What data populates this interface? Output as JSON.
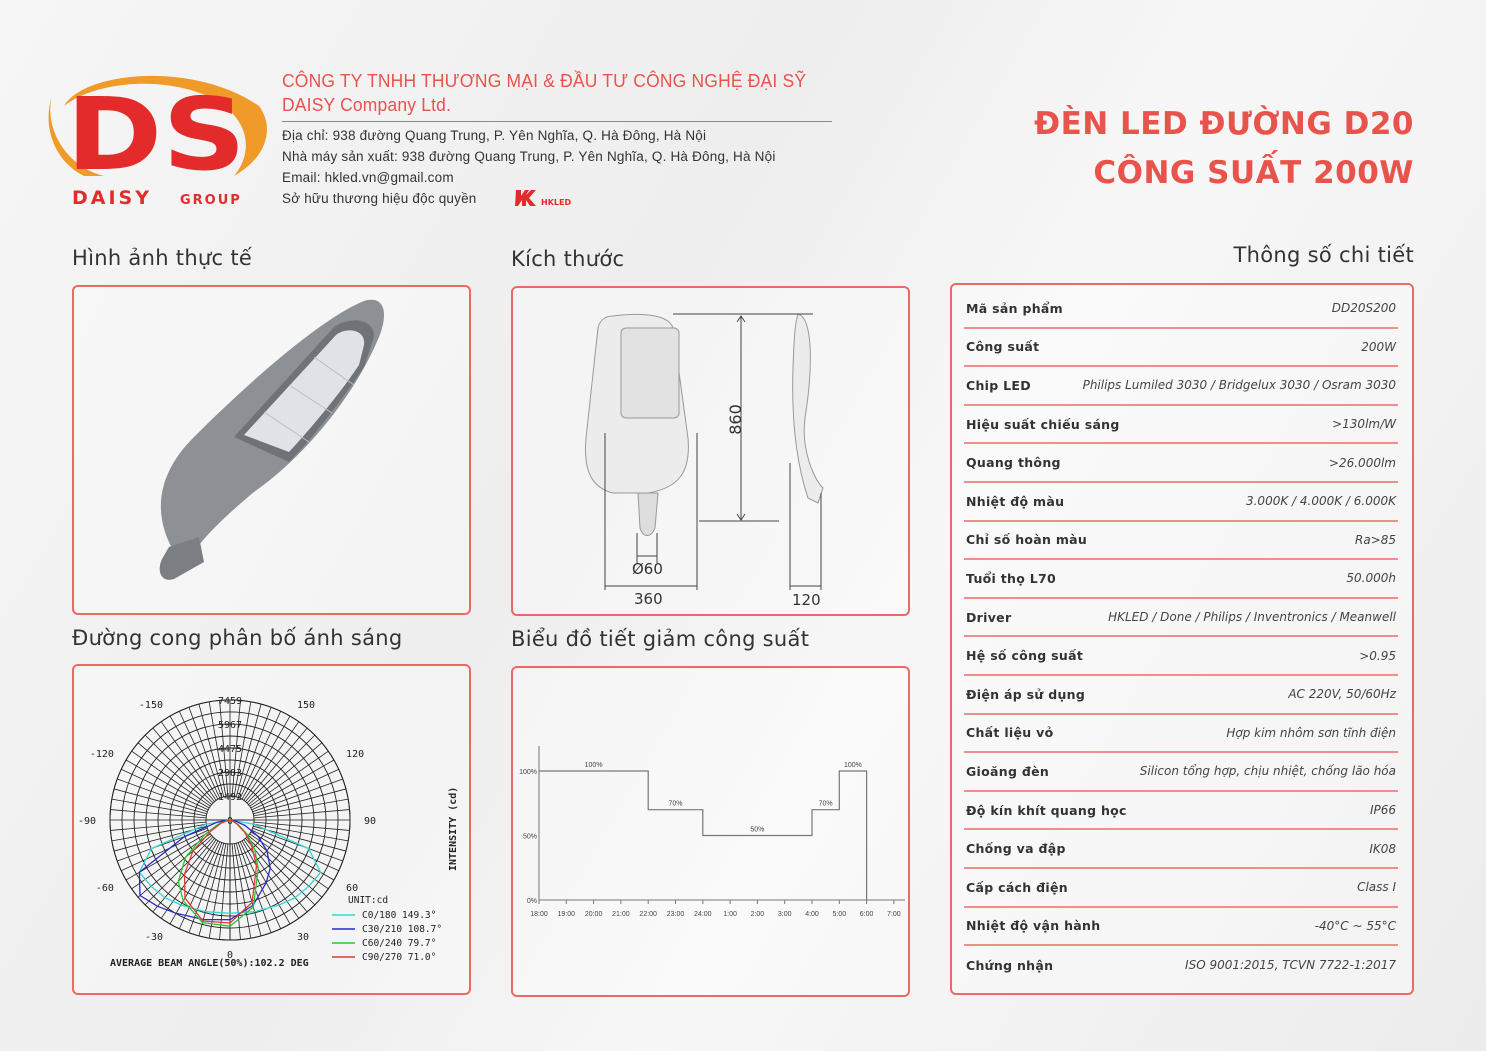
{
  "logo": {
    "letters": "DS",
    "text_main": "DAISY",
    "text_sub": "GROUP",
    "colors": {
      "red": "#e42b2b",
      "orange": "#f09a2a"
    }
  },
  "company": {
    "name_vi": "CÔNG TY TNHH THƯƠNG MẠI & ĐẦU TƯ CÔNG NGHỆ ĐẠI SỸ",
    "name_en": "DAISY Company Ltd.",
    "address": "Địa chỉ: 938 đường Quang Trung, P. Yên Nghĩa, Q. Hà Đông, Hà Nội",
    "factory": "Nhà máy sản xuất: 938 đường Quang Trung, P. Yên Nghĩa, Q. Hà Đông, Hà Nội",
    "email": "Email: hkled.vn@gmail.com",
    "brand_line": "Sở hữu thương hiệu độc quyền",
    "brand_logo": "HKLED"
  },
  "product_title": {
    "line1": "ĐÈN LED ĐƯỜNG D20",
    "line2": "CÔNG SUẤT 200W"
  },
  "accent_color": "#e8534c",
  "sections": {
    "photo": "Hình ảnh thực tế",
    "dimensions": "Kích thước",
    "specs": "Thông số chi tiết",
    "light_curve": "Đường cong phân bố ánh sáng",
    "dimming": "Biểu đồ tiết giảm công suất"
  },
  "dimensions": {
    "height": "860",
    "width": "360",
    "pole": "Ø60",
    "depth": "120"
  },
  "specs": [
    {
      "label": "Mã sản phẩm",
      "value": "DD20S200"
    },
    {
      "label": "Công suất",
      "value": "200W"
    },
    {
      "label": "Chip LED",
      "value": "Philips Lumiled 3030 / Bridgelux 3030 / Osram 3030"
    },
    {
      "label": "Hiệu suất chiếu sáng",
      "value": ">130lm/W"
    },
    {
      "label": "Quang thông",
      "value": ">26.000lm"
    },
    {
      "label": "Nhiệt độ màu",
      "value": "3.000K / 4.000K / 6.000K"
    },
    {
      "label": "Chỉ số hoàn màu",
      "value": "Ra>85"
    },
    {
      "label": "Tuổi thọ L70",
      "value": "50.000h"
    },
    {
      "label": "Driver",
      "value": "HKLED / Done / Philips / Inventronics / Meanwell"
    },
    {
      "label": "Hệ số công suất",
      "value": ">0.95"
    },
    {
      "label": "Điện áp sử dụng",
      "value": "AC 220V, 50/60Hz"
    },
    {
      "label": "Chất liệu vỏ",
      "value": "Hợp kim nhôm sơn tĩnh điện"
    },
    {
      "label": "Gioăng đèn",
      "value": "Silicon tổng hợp, chịu nhiệt, chống lão hóa"
    },
    {
      "label": "Độ kín khít quang học",
      "value": "IP66"
    },
    {
      "label": "Chống va đập",
      "value": "IK08"
    },
    {
      "label": "Cấp cách điện",
      "value": "Class I"
    },
    {
      "label": "Nhiệt độ vận hành",
      "value": "-40°C ~ 55°C"
    },
    {
      "label": "Chứng nhận",
      "value": "ISO 9001:2015, TCVN 7722-1:2017"
    }
  ],
  "chart_data": [
    {
      "type": "polar",
      "ring_labels": [
        "0",
        "1492",
        "2983",
        "4475",
        "5967",
        "7459"
      ],
      "rlim": [
        0,
        7459
      ],
      "angle_labels": [
        "-150",
        "150",
        "-120",
        "120",
        "-90",
        "90",
        "-60",
        "60",
        "-30",
        "30",
        "0"
      ],
      "axis_label": "INTENSITY (cd)",
      "unit": "UNIT:cd",
      "footer": "AVERAGE BEAM ANGLE(50%):102.2 DEG",
      "angles": [
        -90,
        -80,
        -70,
        -60,
        -50,
        -40,
        -30,
        -15,
        0,
        15,
        30,
        40,
        50,
        60,
        70,
        80,
        90
      ],
      "series": [
        {
          "name": "C0/180 149.3°",
          "color": "#35d6d6",
          "values": [
            0,
            1500,
            5200,
            6500,
            6400,
            6300,
            6100,
            5900,
            5800,
            5900,
            6100,
            6300,
            6400,
            6500,
            5200,
            1500,
            0
          ]
        },
        {
          "name": "C30/210 108.7°",
          "color": "#2a2ad0",
          "values": [
            0,
            800,
            3000,
            6500,
            7300,
            7000,
            6700,
            6400,
            6200,
            5500,
            4500,
            3900,
            3000,
            2000,
            1000,
            300,
            0
          ]
        },
        {
          "name": "C60/240 79.7°",
          "color": "#2fc42f",
          "values": [
            0,
            150,
            800,
            1800,
            3600,
            5000,
            5800,
            6600,
            6600,
            5600,
            3500,
            2400,
            1400,
            600,
            200,
            50,
            0
          ]
        },
        {
          "name": "C90/270 71.0°",
          "color": "#e03a3a",
          "values": [
            0,
            100,
            600,
            1400,
            3000,
            4400,
            5600,
            6500,
            6400,
            5300,
            3300,
            2100,
            1200,
            500,
            150,
            50,
            0
          ]
        }
      ]
    },
    {
      "type": "step-line",
      "categories": [
        "18:00",
        "19:00",
        "20:00",
        "21:00",
        "22:00",
        "23:00",
        "24:00",
        "1:00",
        "2:00",
        "3:00",
        "4:00",
        "5:00",
        "6:00",
        "7:00"
      ],
      "yticks": [
        "0%",
        "50%",
        "100%"
      ],
      "ylim": [
        0,
        100
      ],
      "steps": [
        {
          "from": "18:00",
          "to": "22:00",
          "value": 100,
          "label": "100%"
        },
        {
          "from": "22:00",
          "to": "24:00",
          "value": 70,
          "label": "70%"
        },
        {
          "from": "24:00",
          "to": "4:00",
          "value": 50,
          "label": "50%"
        },
        {
          "from": "4:00",
          "to": "5:00",
          "value": 70,
          "label": "70%"
        },
        {
          "from": "5:00",
          "to": "6:00",
          "value": 100,
          "label": "100%"
        }
      ]
    }
  ]
}
